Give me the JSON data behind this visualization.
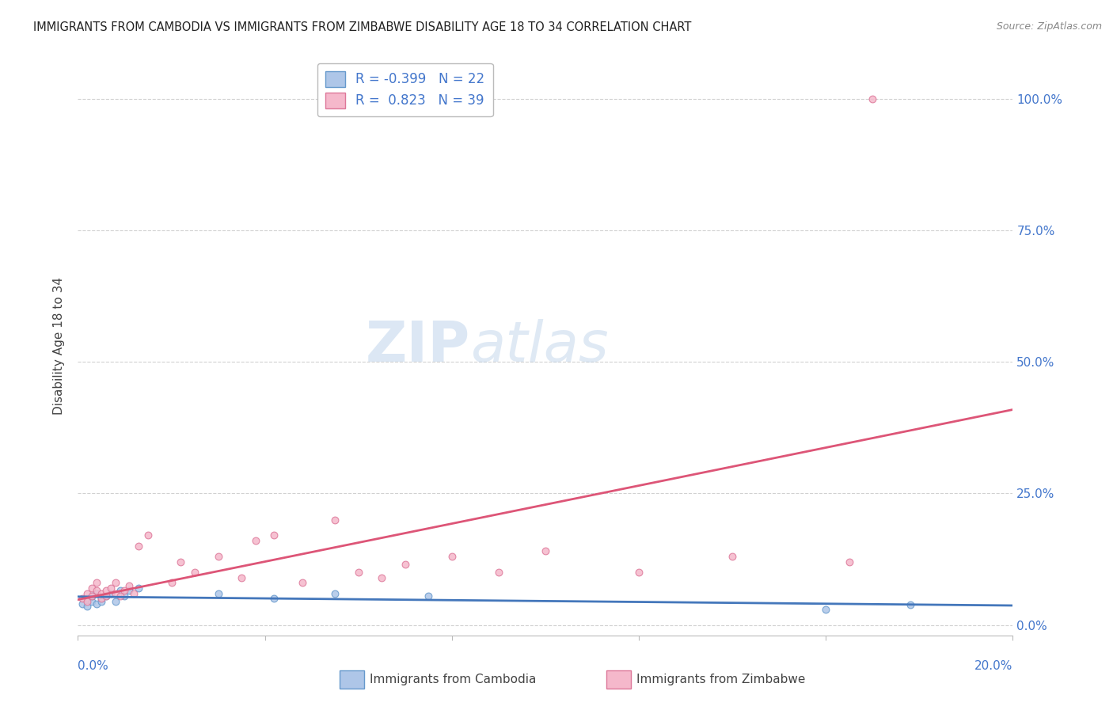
{
  "title": "IMMIGRANTS FROM CAMBODIA VS IMMIGRANTS FROM ZIMBABWE DISABILITY AGE 18 TO 34 CORRELATION CHART",
  "source": "Source: ZipAtlas.com",
  "ylabel": "Disability Age 18 to 34",
  "ytick_labels": [
    "0.0%",
    "25.0%",
    "50.0%",
    "75.0%",
    "100.0%"
  ],
  "ytick_positions": [
    0.0,
    0.25,
    0.5,
    0.75,
    1.0
  ],
  "xtick_positions": [
    0.0,
    0.04,
    0.08,
    0.12,
    0.16,
    0.2
  ],
  "xlim": [
    0.0,
    0.2
  ],
  "ylim": [
    -0.02,
    1.08
  ],
  "watermark_zip": "ZIP",
  "watermark_atlas": "atlas",
  "legend_R_cambodia": "-0.399",
  "legend_N_cambodia": "22",
  "legend_R_zimbabwe": " 0.823",
  "legend_N_zimbabwe": "39",
  "color_cambodia_fill": "#aec6e8",
  "color_cambodia_edge": "#6699cc",
  "color_cambodia_line": "#4477bb",
  "color_zimbabwe_fill": "#f5b8cb",
  "color_zimbabwe_edge": "#dd7799",
  "color_zimbabwe_line": "#dd5577",
  "cambodia_x": [
    0.001,
    0.002,
    0.002,
    0.003,
    0.003,
    0.004,
    0.004,
    0.005,
    0.005,
    0.006,
    0.007,
    0.008,
    0.009,
    0.01,
    0.011,
    0.013,
    0.03,
    0.042,
    0.055,
    0.075,
    0.16,
    0.178
  ],
  "cambodia_y": [
    0.04,
    0.05,
    0.035,
    0.045,
    0.055,
    0.04,
    0.06,
    0.05,
    0.045,
    0.055,
    0.06,
    0.045,
    0.065,
    0.055,
    0.065,
    0.07,
    0.06,
    0.05,
    0.06,
    0.055,
    0.03,
    0.038
  ],
  "zimbabwe_x": [
    0.001,
    0.002,
    0.002,
    0.003,
    0.003,
    0.004,
    0.004,
    0.005,
    0.005,
    0.006,
    0.006,
    0.007,
    0.008,
    0.008,
    0.009,
    0.01,
    0.011,
    0.012,
    0.013,
    0.015,
    0.02,
    0.022,
    0.025,
    0.03,
    0.035,
    0.038,
    0.042,
    0.048,
    0.055,
    0.06,
    0.065,
    0.07,
    0.08,
    0.09,
    0.1,
    0.12,
    0.14,
    0.165,
    0.17
  ],
  "zimbabwe_y": [
    0.05,
    0.045,
    0.06,
    0.055,
    0.07,
    0.065,
    0.08,
    0.05,
    0.06,
    0.055,
    0.065,
    0.07,
    0.06,
    0.08,
    0.055,
    0.065,
    0.075,
    0.06,
    0.15,
    0.17,
    0.08,
    0.12,
    0.1,
    0.13,
    0.09,
    0.16,
    0.17,
    0.08,
    0.2,
    0.1,
    0.09,
    0.115,
    0.13,
    0.1,
    0.14,
    0.1,
    0.13,
    0.12,
    1.0
  ],
  "grid_color": "#cccccc",
  "background_color": "#ffffff",
  "title_color": "#222222",
  "axis_label_color": "#4477cc",
  "right_ytick_color": "#4477cc"
}
